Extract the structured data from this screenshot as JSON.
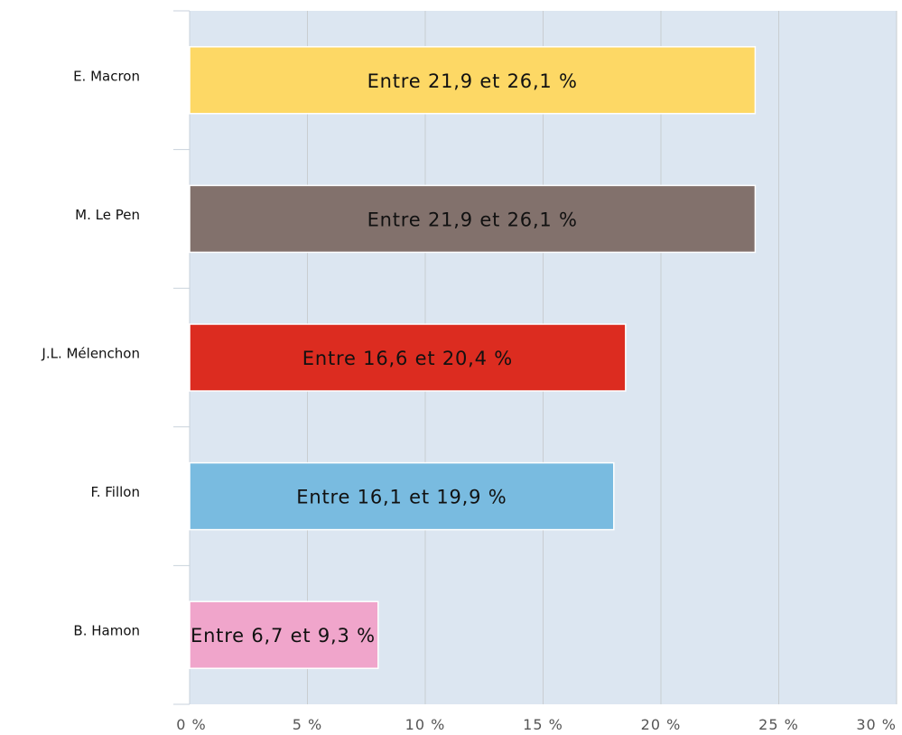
{
  "chart_data": {
    "type": "bar",
    "orientation": "horizontal",
    "categories": [
      "E. Macron",
      "M. Le Pen",
      "J.L. Mélenchon",
      "F. Fillon",
      "B. Hamon"
    ],
    "values": [
      24,
      24,
      18.5,
      18,
      8
    ],
    "bar_labels": [
      "Entre 21,9 et 26,1 %",
      "Entre 21,9 et 26,1 %",
      "Entre 16,6 et 20,4 %",
      "Entre 16,1 et 19,9 %",
      "Entre 6,7 et 9,3 %"
    ],
    "bar_colors": [
      "#FDD865",
      "#82716C",
      "#DC2C20",
      "#79BBE0",
      "#F0A5CB"
    ],
    "xlim": [
      0,
      30
    ],
    "x_ticks": [
      0,
      5,
      10,
      15,
      20,
      25,
      30
    ],
    "x_tick_labels": [
      "0 %",
      "5 %",
      "10 %",
      "15 %",
      "20 %",
      "25 %",
      "30 %"
    ],
    "grid": true,
    "plot_background": "#DCE6F1",
    "grid_color": "#C9CDD1",
    "title": "",
    "xlabel": "",
    "ylabel": ""
  }
}
